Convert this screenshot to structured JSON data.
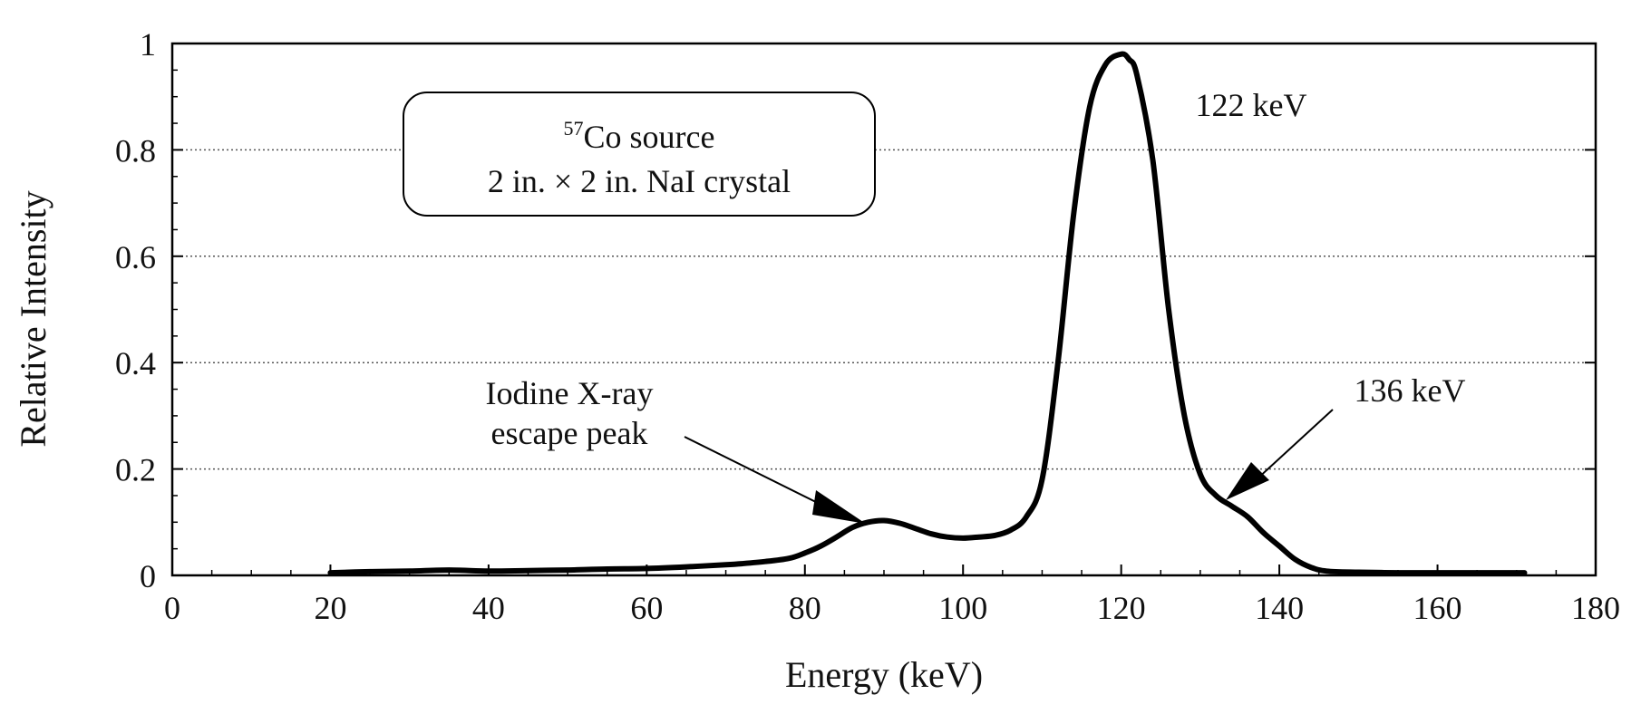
{
  "chart_data": {
    "type": "line",
    "title": "",
    "xlabel": "Energy (keV)",
    "ylabel": "Relative Intensity",
    "xlim": [
      0,
      180
    ],
    "ylim": [
      0,
      1
    ],
    "x_ticks": [
      0,
      20,
      40,
      60,
      80,
      100,
      120,
      140,
      160,
      180
    ],
    "x_tick_labels": [
      "0",
      "20",
      "40",
      "60",
      "80",
      "100",
      "120",
      "140",
      "160",
      "180"
    ],
    "y_ticks": [
      0,
      0.2,
      0.4,
      0.6,
      0.8,
      1
    ],
    "y_tick_labels": [
      "0",
      "0.2",
      "0.4",
      "0.6",
      "0.8",
      "1"
    ],
    "grid": "horizontal dotted",
    "series": [
      {
        "color": "#000000",
        "x": [
          20,
          25,
          30,
          35,
          40,
          45,
          50,
          55,
          60,
          65,
          70,
          72,
          75,
          78,
          80,
          82,
          84,
          86,
          88,
          90,
          92,
          94,
          96,
          98,
          100,
          102,
          104,
          106,
          108,
          110,
          112,
          114,
          116,
          118,
          120,
          121,
          122,
          124,
          126,
          128,
          130,
          132,
          134,
          136,
          138,
          140,
          142,
          144,
          146,
          150,
          155,
          160,
          165,
          171
        ],
        "y": [
          0.005,
          0.007,
          0.008,
          0.01,
          0.008,
          0.009,
          0.01,
          0.012,
          0.013,
          0.016,
          0.02,
          0.022,
          0.026,
          0.032,
          0.042,
          0.055,
          0.072,
          0.09,
          0.1,
          0.103,
          0.098,
          0.088,
          0.078,
          0.072,
          0.07,
          0.072,
          0.075,
          0.085,
          0.11,
          0.18,
          0.4,
          0.68,
          0.88,
          0.96,
          0.98,
          0.97,
          0.94,
          0.78,
          0.5,
          0.3,
          0.19,
          0.15,
          0.13,
          0.11,
          0.08,
          0.055,
          0.03,
          0.015,
          0.008,
          0.006,
          0.005,
          0.005,
          0.005,
          0.005
        ]
      }
    ],
    "annotations": [
      {
        "id": "source-box",
        "lines": [
          "Co source",
          "2 in. × 2 in. NaI crystal"
        ],
        "superscript": "57"
      },
      {
        "id": "peak-122",
        "text": "122 keV"
      },
      {
        "id": "peak-136",
        "text": "136 keV",
        "arrow_to": [
          135,
          0.13
        ]
      },
      {
        "id": "escape-peak",
        "lines": [
          "Iodine X-ray",
          "escape peak"
        ],
        "arrow_to": [
          88,
          0.105
        ]
      }
    ]
  }
}
